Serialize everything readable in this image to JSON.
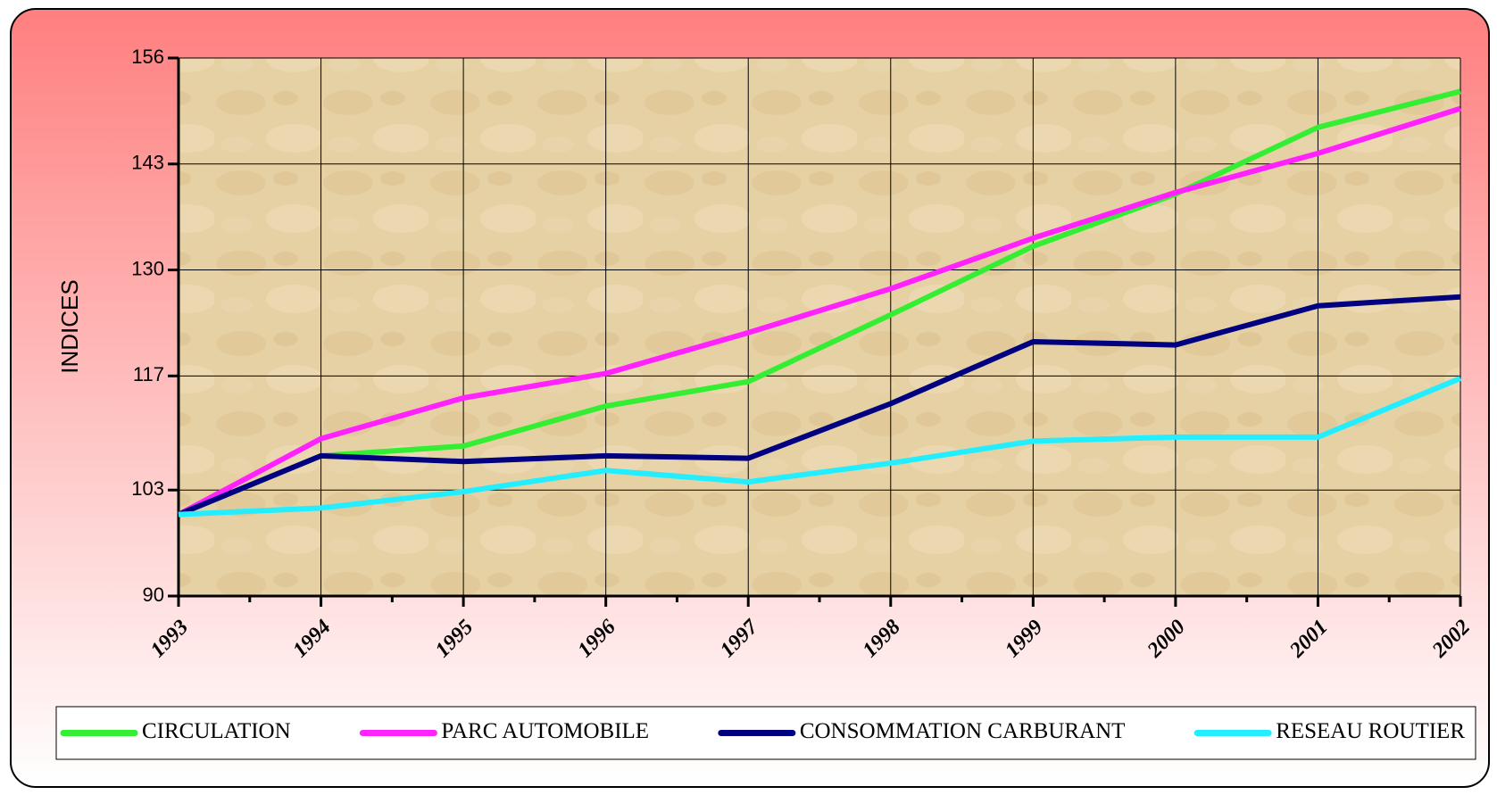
{
  "chart_data": {
    "type": "line",
    "y_label": "INDICES",
    "categories": [
      "1993",
      "1994",
      "1995",
      "1996",
      "1997",
      "1998",
      "1999",
      "2000",
      "2001",
      "2002"
    ],
    "ylim": [
      90,
      156
    ],
    "yticks": [
      90,
      103,
      117,
      130,
      143,
      156
    ],
    "grid": true,
    "series": [
      {
        "name": "CIRCULATION",
        "color": "#33ee33",
        "values": [
          100,
          107.2,
          108.4,
          113.3,
          116.3,
          124.5,
          132.9,
          139.3,
          147.5,
          151.9
        ]
      },
      {
        "name": "PARC  AUTOMOBILE",
        "color": "#ff22ff",
        "values": [
          100,
          109.3,
          114.3,
          117.3,
          122.3,
          127.7,
          133.9,
          139.5,
          144.3,
          149.8
        ]
      },
      {
        "name": "CONSOMMATION CARBURANT",
        "color": "#000080",
        "values": [
          100,
          107.2,
          106.5,
          107.2,
          106.9,
          113.6,
          121.2,
          120.8,
          125.6,
          126.7
        ]
      },
      {
        "name": "RESEAU ROUTIER",
        "color": "#22eeff",
        "values": [
          100,
          100.8,
          102.8,
          105.4,
          104.0,
          106.3,
          109.0,
          109.5,
          109.5,
          116.7
        ]
      }
    ],
    "legend": "bottom"
  }
}
